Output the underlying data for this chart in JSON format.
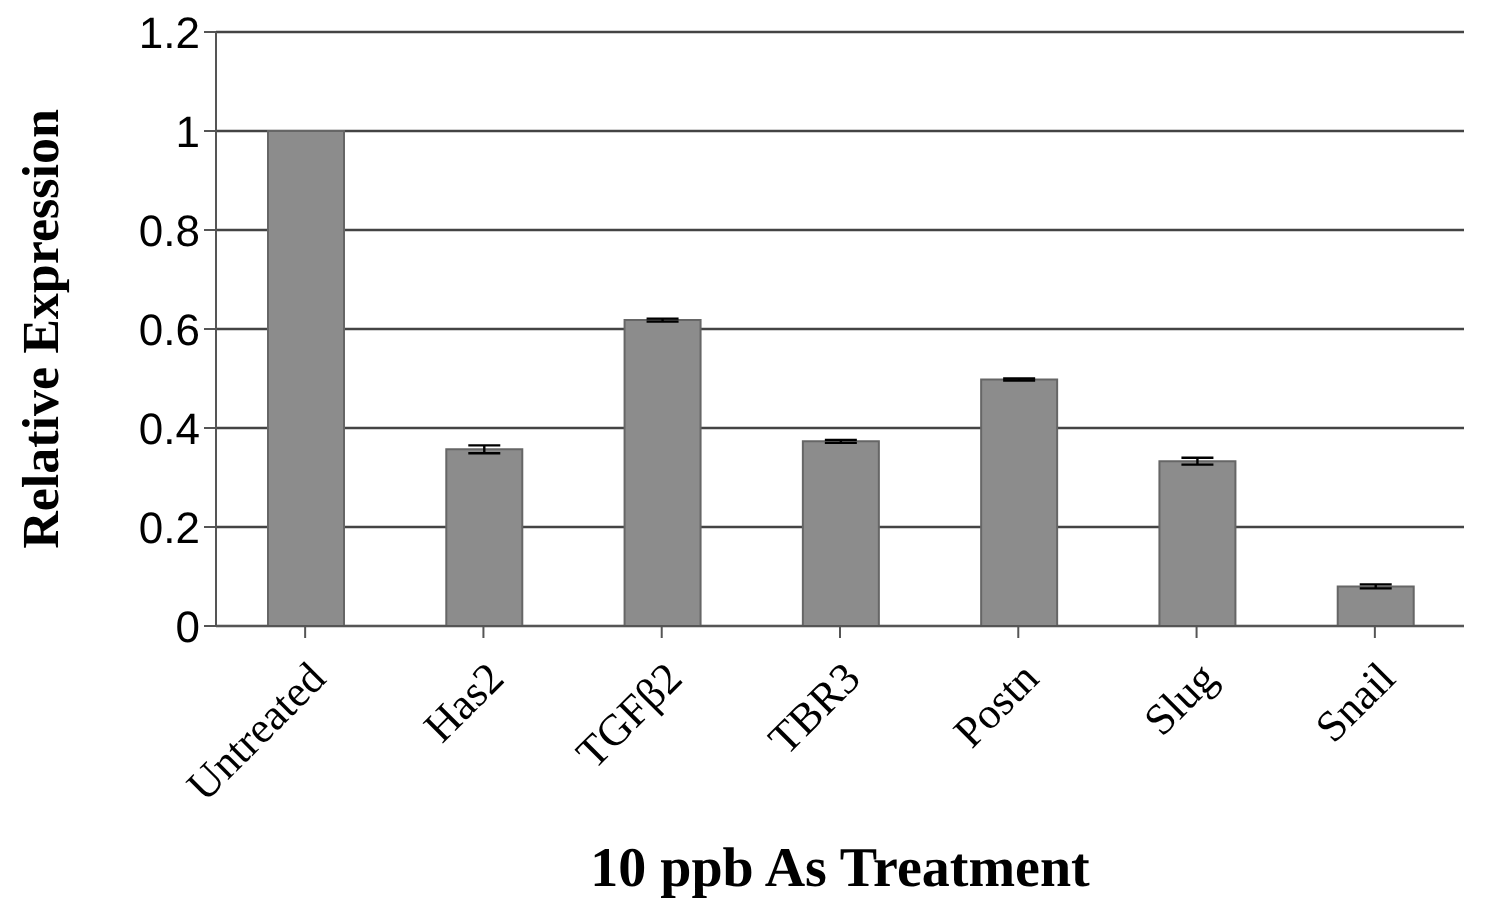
{
  "chart_data": {
    "type": "bar",
    "xlabel": "10 ppb As Treatment",
    "ylabel": "Relative Expression",
    "categories": [
      "Untreated",
      "Has2",
      "TGFβ2",
      "TBR3",
      "Postn",
      "Slug",
      "Snail"
    ],
    "values": [
      1,
      0.357,
      0.618,
      0.373,
      0.498,
      0.333,
      0.08
    ],
    "errors": [
      null,
      0.008,
      0.003,
      0.003,
      0.002,
      0.007,
      0.004
    ],
    "color": "#8c8c8c",
    "ylim": [
      0,
      1.2
    ],
    "yticks": [
      0,
      0.2,
      0.4,
      0.6,
      0.8,
      1,
      1.2
    ],
    "grid": "y"
  }
}
